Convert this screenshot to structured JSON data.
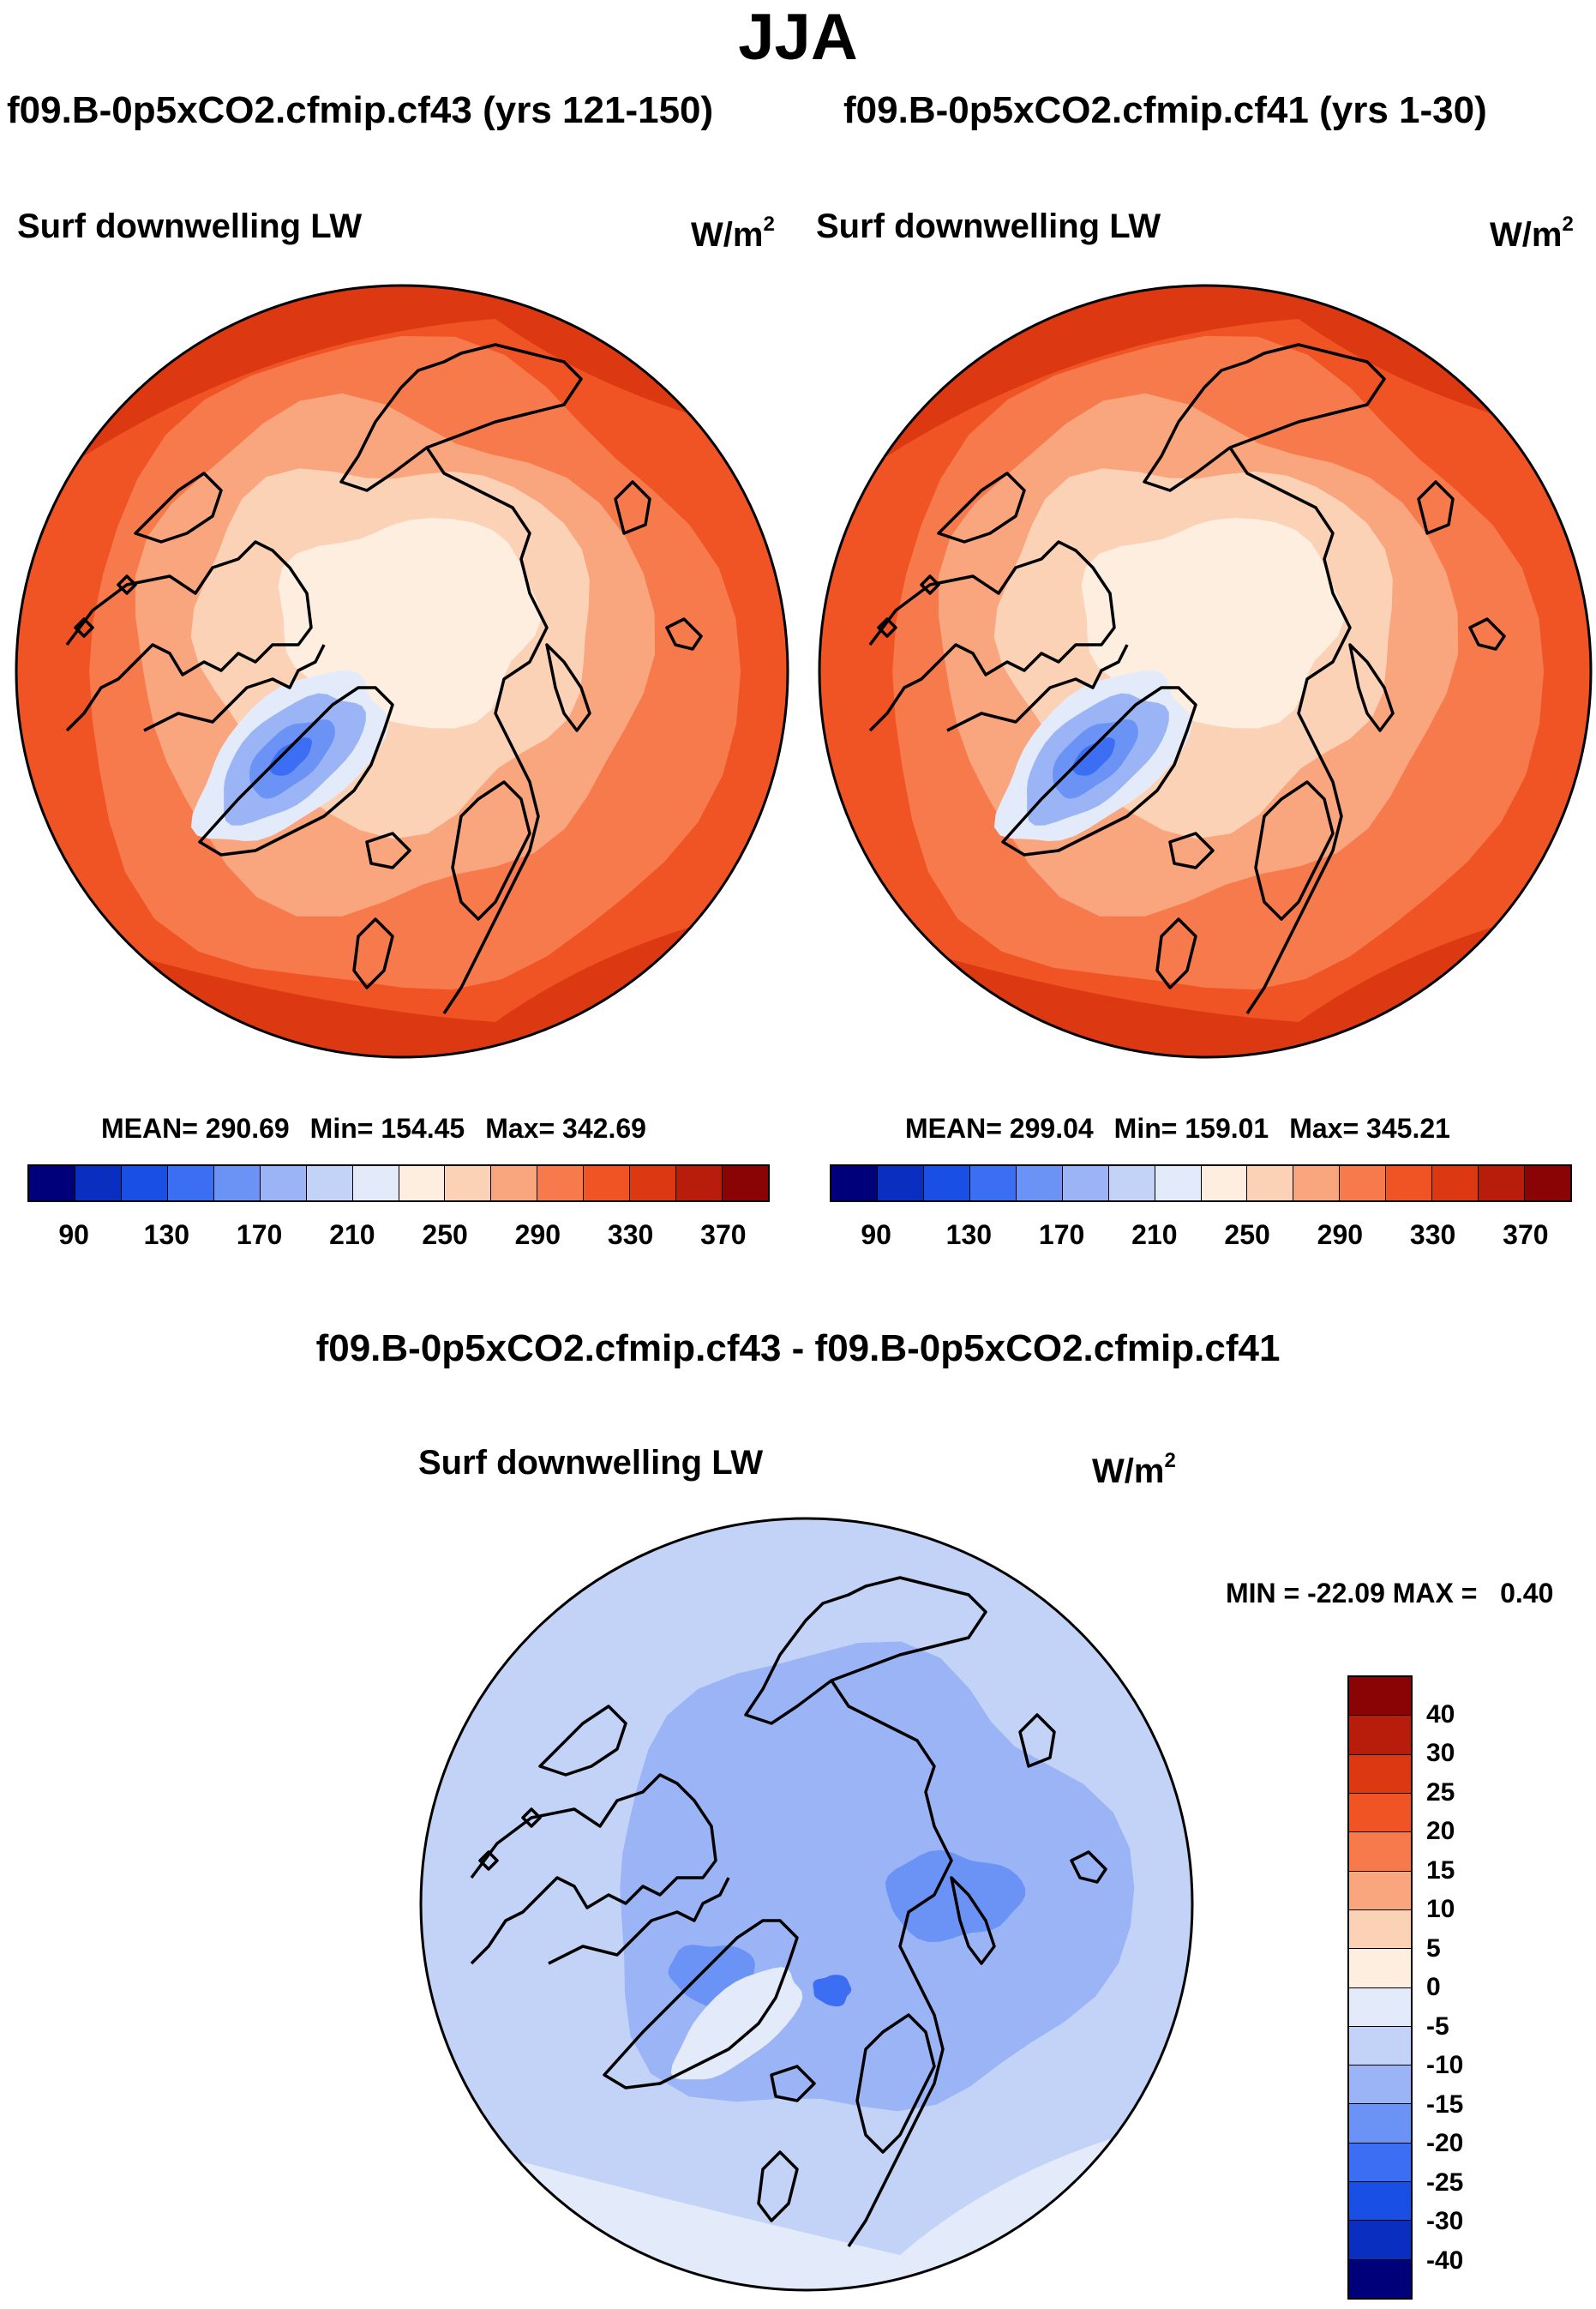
{
  "figure_title": "JJA",
  "chart_data": [
    {
      "type": "heatmap",
      "title": "f09.B-0p5xCO2.cfmip.cf43 (yrs 121-150)",
      "variable": "Surf downwelling LW",
      "units": "W/m",
      "units_exp": "2",
      "projection": "north polar stereographic",
      "mean_label": "MEAN= 290.69",
      "min_label": "Min= 154.45",
      "max_label": "Max= 342.69",
      "mean": 290.69,
      "min": 154.45,
      "max": 342.69,
      "colorbar": {
        "tick_labels": [
          "90",
          "130",
          "170",
          "210",
          "250",
          "290",
          "330",
          "370"
        ],
        "colors": [
          "#00007a",
          "#0a2ebf",
          "#1a4fe6",
          "#3b6ef2",
          "#6b93f5",
          "#9ab4f5",
          "#c2d3f7",
          "#e3ebfa",
          "#fdeee0",
          "#fcd2b6",
          "#f9a57d",
          "#f77a4c",
          "#f05425",
          "#dc3912",
          "#b81c0a",
          "#8a0406"
        ]
      }
    },
    {
      "type": "heatmap",
      "title": "f09.B-0p5xCO2.cfmip.cf41 (yrs 1-30)",
      "variable": "Surf downwelling LW",
      "units": "W/m",
      "units_exp": "2",
      "projection": "north polar stereographic",
      "mean_label": "MEAN= 299.04",
      "min_label": "Min= 159.01",
      "max_label": "Max= 345.21",
      "mean": 299.04,
      "min": 159.01,
      "max": 345.21,
      "colorbar": {
        "tick_labels": [
          "90",
          "130",
          "170",
          "210",
          "250",
          "290",
          "330",
          "370"
        ],
        "colors": [
          "#00007a",
          "#0a2ebf",
          "#1a4fe6",
          "#3b6ef2",
          "#6b93f5",
          "#9ab4f5",
          "#c2d3f7",
          "#e3ebfa",
          "#fdeee0",
          "#fcd2b6",
          "#f9a57d",
          "#f77a4c",
          "#f05425",
          "#dc3912",
          "#b81c0a",
          "#8a0406"
        ]
      }
    },
    {
      "type": "heatmap",
      "title": "f09.B-0p5xCO2.cfmip.cf43 - f09.B-0p5xCO2.cfmip.cf41",
      "variable": "Surf downwelling LW",
      "units": "W/m",
      "units_exp": "2",
      "projection": "north polar stereographic",
      "minmax_label": "MIN = -22.09 MAX =   0.40",
      "min": -22.09,
      "max": 0.4,
      "colorbar": {
        "tick_labels": [
          "40",
          "30",
          "25",
          "20",
          "15",
          "10",
          "5",
          "0",
          "-5",
          "-10",
          "-15",
          "-20",
          "-25",
          "-30",
          "-40"
        ],
        "colors": [
          "#8a0406",
          "#b81c0a",
          "#dc3912",
          "#f05425",
          "#f77a4c",
          "#f9a57d",
          "#fcd2b6",
          "#fdeee0",
          "#e3ebfa",
          "#c2d3f7",
          "#9ab4f5",
          "#6b93f5",
          "#3b6ef2",
          "#1a4fe6",
          "#0a2ebf",
          "#00007a"
        ]
      }
    }
  ]
}
